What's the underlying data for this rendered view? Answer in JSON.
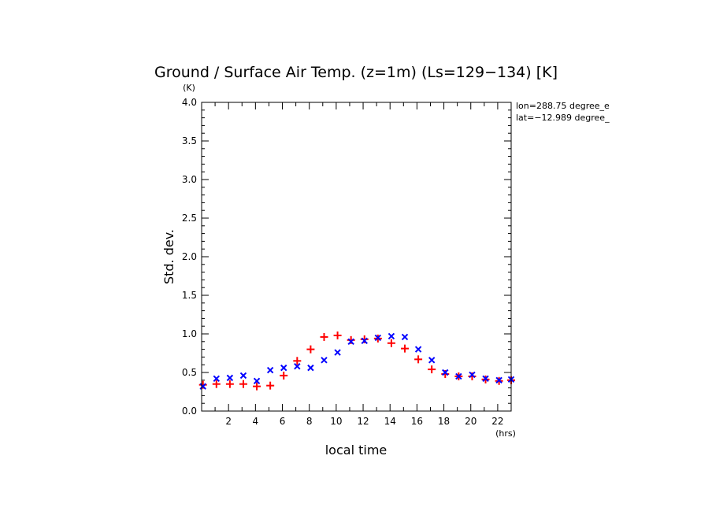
{
  "chart_data": {
    "type": "scatter",
    "title": "Ground / Surface Air Temp. (z=1m) (Ls=129−134) [K]",
    "xlabel": "local time",
    "ylabel": "Std. dev.",
    "x_unit": "(hrs)",
    "y_unit": "(K)",
    "xlim": [
      0,
      23
    ],
    "ylim": [
      0,
      4.0
    ],
    "x_ticks": [
      2,
      4,
      6,
      8,
      10,
      12,
      14,
      16,
      18,
      20,
      22
    ],
    "y_ticks": [
      "0.0",
      "0.5",
      "1.0",
      "1.5",
      "2.0",
      "2.5",
      "3.0",
      "3.5",
      "4.0"
    ],
    "annotations": [
      "lon=288.75 degree_e",
      "lat=−12.989 degree_"
    ],
    "series": [
      {
        "marker": "plus",
        "color": "#ff0000",
        "x": [
          0.1,
          1.1,
          2.1,
          3.1,
          4.1,
          5.1,
          6.1,
          7.1,
          8.1,
          9.1,
          10.1,
          11.1,
          12.1,
          13.1,
          14.1,
          15.1,
          16.1,
          17.1,
          18.1,
          19.1,
          20.1,
          21.1,
          22.1,
          23.0
        ],
        "y": [
          0.34,
          0.35,
          0.35,
          0.35,
          0.32,
          0.33,
          0.46,
          0.65,
          0.8,
          0.96,
          0.98,
          0.92,
          0.93,
          0.94,
          0.88,
          0.81,
          0.67,
          0.54,
          0.48,
          0.45,
          0.45,
          0.41,
          0.39,
          0.4
        ]
      },
      {
        "marker": "cross",
        "color": "#0000ff",
        "x": [
          0.1,
          1.1,
          2.1,
          3.1,
          4.1,
          5.1,
          6.1,
          7.1,
          8.1,
          9.1,
          10.1,
          11.1,
          12.1,
          13.1,
          14.1,
          15.1,
          16.1,
          17.1,
          18.1,
          19.1,
          20.1,
          21.1,
          22.1,
          23.0
        ],
        "y": [
          0.32,
          0.42,
          0.43,
          0.46,
          0.39,
          0.53,
          0.56,
          0.58,
          0.56,
          0.66,
          0.76,
          0.9,
          0.91,
          0.95,
          0.97,
          0.96,
          0.8,
          0.66,
          0.5,
          0.45,
          0.47,
          0.42,
          0.4,
          0.41
        ]
      }
    ]
  }
}
